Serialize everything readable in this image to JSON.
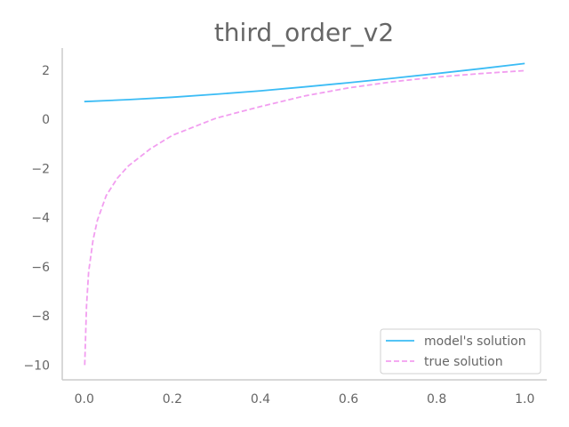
{
  "chart_data": {
    "type": "line",
    "title": "third_order_v2",
    "xlabel": "",
    "ylabel": "",
    "xlim": [
      -0.05,
      1.05
    ],
    "ylim": [
      -10.6,
      2.9
    ],
    "grid": false,
    "legend_placement": "lower-right",
    "x_ticks": [
      "0.0",
      "0.2",
      "0.4",
      "0.6",
      "0.8",
      "1.0"
    ],
    "y_ticks": [
      "2",
      "0",
      "−2",
      "−4",
      "−6",
      "−8",
      "−10"
    ],
    "series": [
      {
        "name": "model's solution",
        "color": "#3bbcf5",
        "style": "solid",
        "x": [
          0.0,
          0.1,
          0.2,
          0.3,
          0.4,
          0.5,
          0.6,
          0.7,
          0.8,
          0.9,
          1.0
        ],
        "y": [
          0.72,
          0.8,
          0.9,
          1.02,
          1.16,
          1.32,
          1.49,
          1.67,
          1.86,
          2.06,
          2.27
        ]
      },
      {
        "name": "true solution",
        "color": "#f29ef0",
        "style": "dashed",
        "x": [
          0.001,
          0.005,
          0.01,
          0.02,
          0.03,
          0.05,
          0.075,
          0.1,
          0.15,
          0.2,
          0.3,
          0.4,
          0.5,
          0.6,
          0.7,
          0.8,
          0.9,
          1.0
        ],
        "y": [
          -10.0,
          -7.6,
          -6.2,
          -4.9,
          -4.1,
          -3.1,
          -2.4,
          -1.9,
          -1.2,
          -0.65,
          0.05,
          0.52,
          0.95,
          1.28,
          1.53,
          1.72,
          1.86,
          1.98
        ]
      }
    ]
  }
}
